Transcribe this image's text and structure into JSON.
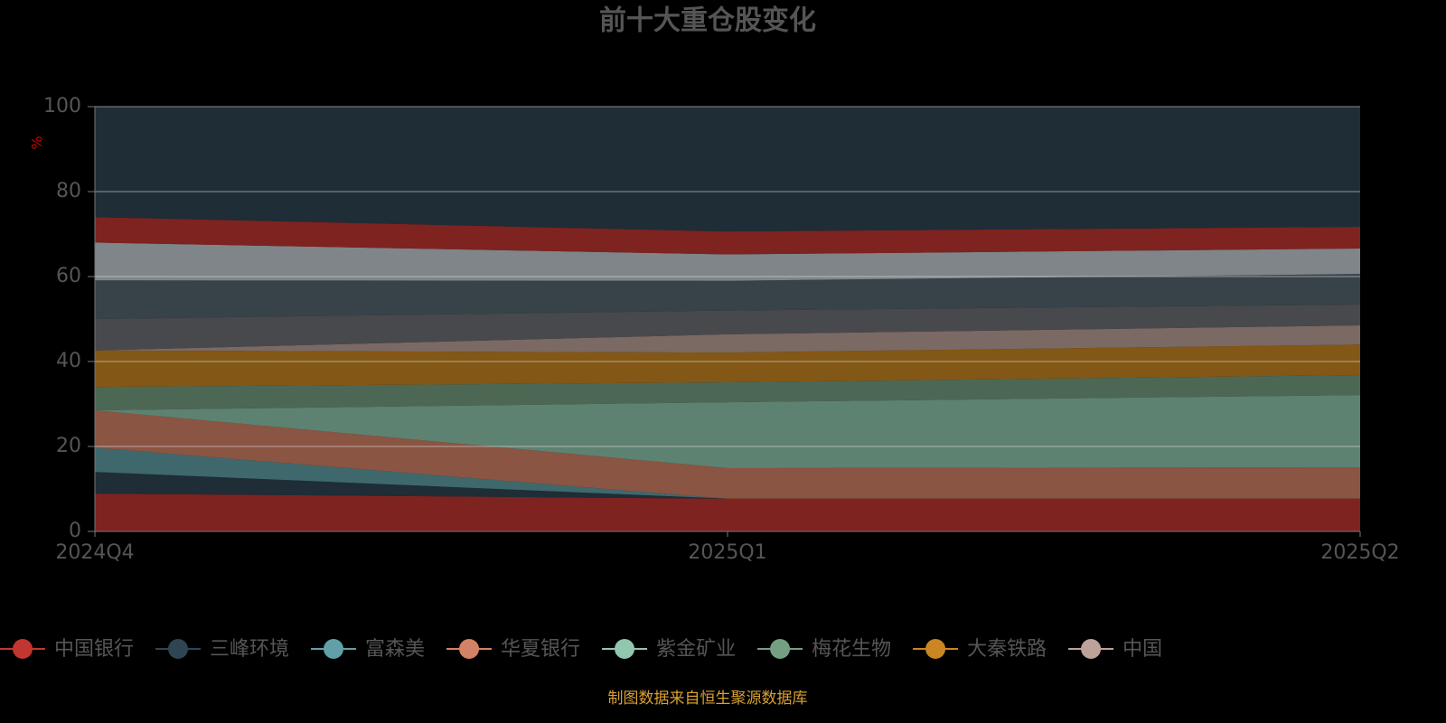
{
  "chart_data": {
    "type": "stacked_area",
    "title": "前十大重仓股变化",
    "y_label": "%",
    "source": "制图数据来自恒生聚源数据库",
    "categories": [
      "2024Q4",
      "2025Q1",
      "2025Q2"
    ],
    "ylim": [
      0,
      100
    ],
    "yticks": [
      0,
      20,
      40,
      60,
      80,
      100
    ],
    "grid": true,
    "series": [
      {
        "name": "中国银行",
        "color": "#c23531",
        "values": [
          8.9,
          7.7,
          7.7
        ]
      },
      {
        "name": "三峰环境",
        "color": "#2f4554",
        "values": [
          5.1,
          0,
          0
        ]
      },
      {
        "name": "富森美",
        "color": "#61a0a8",
        "values": [
          5.7,
          0,
          0
        ]
      },
      {
        "name": "华夏银行",
        "color": "#d48265",
        "values": [
          8.8,
          7.2,
          7.4
        ]
      },
      {
        "name": "紫金矿业",
        "color": "#91c7ae",
        "values": [
          0,
          15.5,
          17.0
        ]
      },
      {
        "name": "梅花生物",
        "color": "#749f83",
        "values": [
          5.5,
          4.7,
          4.7
        ]
      },
      {
        "name": "大秦铁路",
        "color": "#ca8622",
        "values": [
          8.6,
          7.0,
          7.2
        ]
      },
      {
        "name": "中国",
        "color": "#bda29a",
        "values": [
          0,
          4.3,
          4.5
        ]
      },
      {
        "color": "#6e7074",
        "values": [
          7.4,
          5.6,
          4.9
        ]
      },
      {
        "color": "#546570",
        "values": [
          9.1,
          7.0,
          7.2
        ]
      },
      {
        "color": "#c4ccd3",
        "values": [
          8.9,
          6.2,
          6.0
        ]
      },
      {
        "color": "#c23531",
        "values": [
          6.0,
          5.4,
          5.1
        ]
      },
      {
        "color": "#2f4554",
        "values": [
          26.0,
          29.4,
          28.3
        ]
      }
    ]
  }
}
